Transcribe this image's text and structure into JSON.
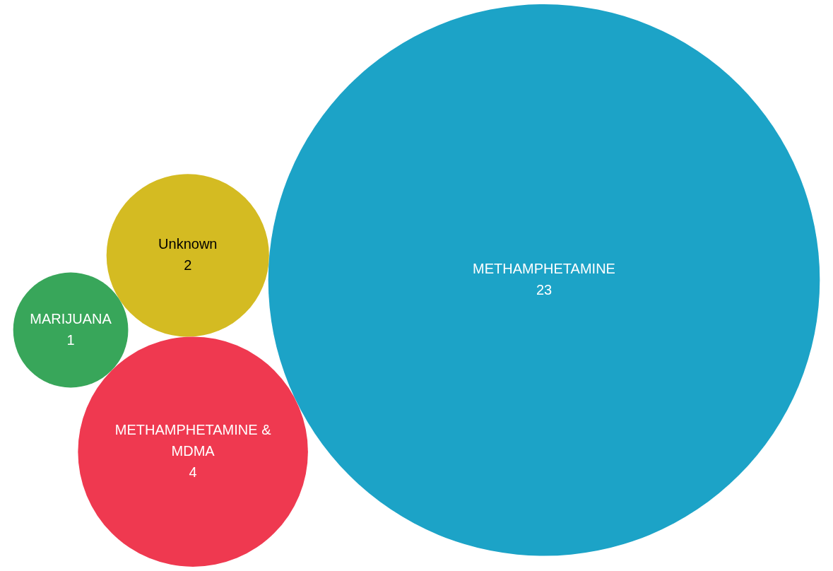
{
  "chart_data": {
    "type": "other",
    "categories": [
      "Unknown",
      "MARIJUANA",
      "METHAMPHETAMINE",
      "METHAMPHETAMINE & MDMA"
    ],
    "values": [
      2,
      1,
      23,
      4
    ],
    "colors": [
      "#d4bb22",
      "#38a65a",
      "#1ca3c7",
      "#ef3950"
    ],
    "data_labels": true
  }
}
